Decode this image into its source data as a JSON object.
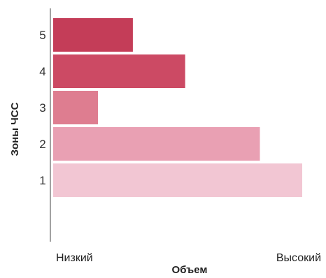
{
  "chart_data": {
    "type": "bar",
    "orientation": "horizontal",
    "ylabel": "Зоны ЧСС",
    "xlabel": "Объем",
    "x_axis_left_label": "Низкий",
    "x_axis_right_label": "Высокий",
    "categories": [
      "5",
      "4",
      "3",
      "2",
      "1"
    ],
    "values": [
      32,
      53,
      18,
      83,
      100
    ],
    "colors": [
      "#c43d58",
      "#cc4a64",
      "#de7d90",
      "#e9a0b3",
      "#f2c6d3"
    ],
    "xlim": [
      0,
      100
    ],
    "grid": false,
    "legend": "none"
  }
}
